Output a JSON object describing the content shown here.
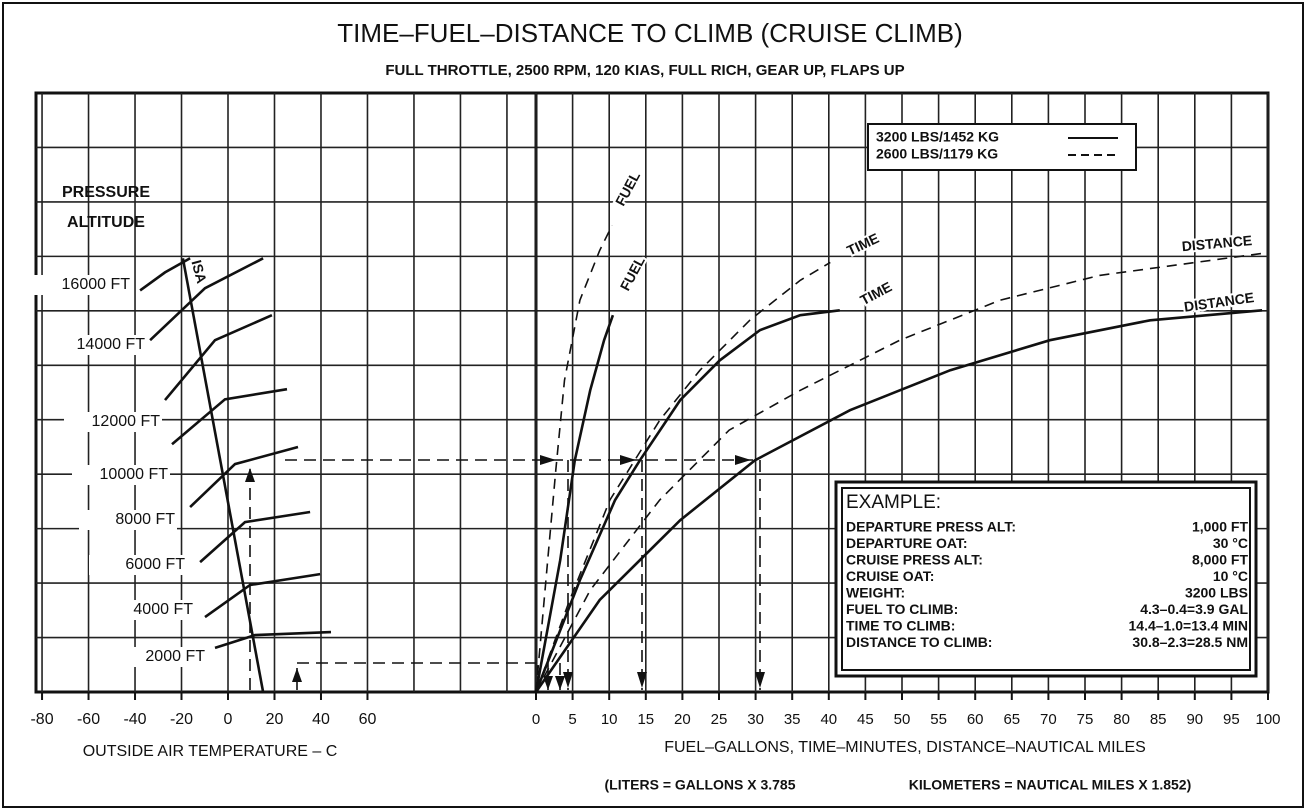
{
  "chart_data": {
    "type": "line",
    "title": "TIME–FUEL–DISTANCE TO CLIMB (CRUISE CLIMB)",
    "subtitle": "FULL THROTTLE, 2500 RPM, 120 KIAS, FULL RICH, GEAR UP, FLAPS UP",
    "color": "#111111",
    "grid": true,
    "ylim": [
      0,
      22000
    ],
    "ygrid": [
      2000,
      4000,
      6000,
      8000,
      10000,
      12000,
      14000,
      16000,
      18000,
      20000
    ],
    "legend_position": "upper right",
    "legend": [
      {
        "name": "3200 LBS/1452 KG",
        "dash": false
      },
      {
        "name": "2600 LBS/1179 KG",
        "dash": true
      }
    ],
    "temperature_panel": {
      "xlabel": "OUTSIDE AIR TEMPERATURE – C",
      "ylabel": [
        "PRESSURE",
        "ALTITUDE"
      ],
      "xlim": [
        -82.6,
        132.5
      ],
      "xticks": [
        -80,
        -60,
        -40,
        -20,
        0,
        20,
        40,
        60
      ],
      "xgrid": [
        -80,
        -60,
        -40,
        -20,
        0,
        20,
        40,
        60,
        80,
        100,
        120
      ],
      "isa": {
        "name": "ISA",
        "x": [
          -19.4,
          15.1
        ],
        "y": [
          15930,
          0
        ]
      },
      "altitudes": [
        {
          "name": "16000 FT",
          "x": [
            -37.8,
            -27.1,
            -16.3
          ],
          "y": [
            14750,
            15410,
            15930
          ]
        },
        {
          "name": "14000 FT",
          "x": [
            -33.5,
            -9.9,
            15.1
          ],
          "y": [
            12920,
            14830,
            15930
          ]
        },
        {
          "name": "12000 FT",
          "x": [
            -27.1,
            -5.6,
            18.9
          ],
          "y": [
            10720,
            12920,
            13840
          ]
        },
        {
          "name": "10000 FT",
          "x": [
            -24.1,
            -1.3,
            25.4
          ],
          "y": [
            9100,
            10750,
            11120
          ]
        },
        {
          "name": "8000 FT",
          "x": [
            -16.3,
            3.0,
            30.1
          ],
          "y": [
            6790,
            8370,
            9000
          ]
        },
        {
          "name": "6000 FT",
          "x": [
            -12.0,
            7.3,
            35.3
          ],
          "y": [
            4770,
            6240,
            6610
          ]
        },
        {
          "name": "4000 FT",
          "x": [
            -9.9,
            9.5,
            39.6
          ],
          "y": [
            2750,
            3930,
            4330
          ]
        },
        {
          "name": "2000 FT",
          "x": [
            -5.6,
            11.6,
            44.3
          ],
          "y": [
            1620,
            2090,
            2200
          ]
        }
      ]
    },
    "climb_panel": {
      "xlabel": "FUEL–GALLONS,  TIME–MINUTES,  DISTANCE–NAUTICAL MILES",
      "note": [
        "(LITERS = GALLONS X 3.785",
        "KILOMETERS = NAUTICAL MILES X 1.852)"
      ],
      "xlim": [
        0,
        100
      ],
      "xticks": [
        0,
        5,
        10,
        15,
        20,
        25,
        30,
        35,
        40,
        45,
        50,
        55,
        60,
        65,
        70,
        75,
        80,
        85,
        90,
        95,
        100
      ],
      "series": [
        {
          "name": "FUEL",
          "weight": 0,
          "x": [
            0,
            3.3,
            5.3,
            7.4,
            9.3,
            10.5
          ],
          "y": [
            0,
            4840,
            8510,
            11080,
            12920,
            13840
          ]
        },
        {
          "name": "FUEL",
          "weight": 1,
          "x": [
            0,
            1.6,
            2.7,
            3.9,
            6.0,
            8.7,
            10.4
          ],
          "y": [
            0,
            4840,
            8150,
            11450,
            14390,
            16220,
            17140
          ]
        },
        {
          "name": "TIME",
          "weight": 0,
          "x": [
            0,
            6.0,
            10.8,
            14.2,
            19.7,
            25.1,
            30.6,
            36.1,
            41.5
          ],
          "y": [
            0,
            4110,
            7050,
            8510,
            10720,
            12180,
            13290,
            13840,
            14020
          ]
        },
        {
          "name": "TIME",
          "weight": 1,
          "x": [
            0,
            4.6,
            10.1,
            16.9,
            22.4,
            29.2,
            36.1,
            40.2
          ],
          "y": [
            0,
            3380,
            7050,
            9980,
            11820,
            13650,
            15120,
            15780
          ]
        },
        {
          "name": "DISTANCE",
          "weight": 0,
          "x": [
            0,
            8.7,
            19.7,
            29.9,
            42.9,
            56.6,
            70.2,
            83.9,
            99.2
          ],
          "y": [
            0,
            3380,
            6310,
            8510,
            10350,
            11820,
            12920,
            13650,
            14020
          ]
        },
        {
          "name": "DISTANCE",
          "weight": 1,
          "x": [
            0,
            7.4,
            16.9,
            26.4,
            36.1,
            49.7,
            63.4,
            77.0,
            99.2
          ],
          "y": [
            0,
            3740,
            7050,
            9620,
            11080,
            12920,
            14390,
            15300,
            16110
          ]
        }
      ]
    },
    "example": {
      "title": "EXAMPLE:",
      "rows": [
        [
          "DEPARTURE PRESS ALT:",
          "1,000 FT"
        ],
        [
          "DEPARTURE OAT:",
          "30 °C"
        ],
        [
          "CRUISE PRESS ALT:",
          "8,000 FT"
        ],
        [
          "CRUISE OAT:",
          "10 °C"
        ],
        [
          "WEIGHT:",
          "3200 LBS"
        ],
        [
          "FUEL TO CLIMB:",
          "4.3–0.4=3.9 GAL"
        ],
        [
          "TIME TO CLIMB:",
          "14.4–1.0=13.4 MIN"
        ],
        [
          "DISTANCE TO CLIMB:",
          "30.8–2.3=28.5 NM"
        ]
      ]
    }
  }
}
